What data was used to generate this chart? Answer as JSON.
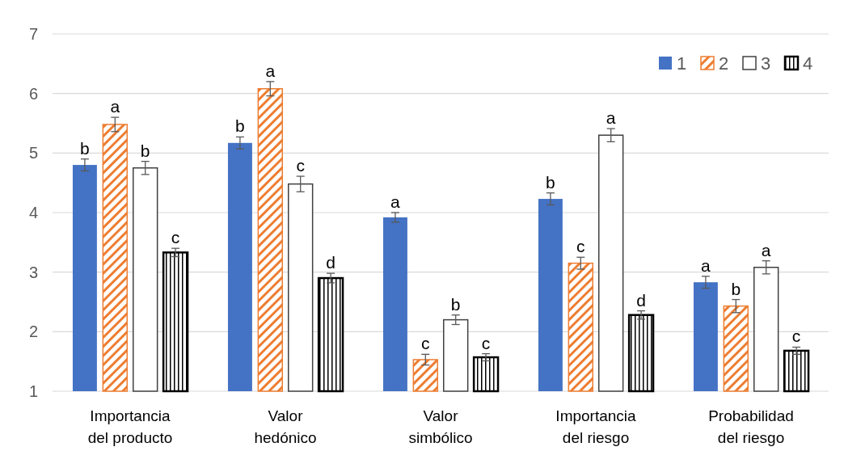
{
  "chart_data": {
    "type": "bar",
    "categories": [
      "Importancia del producto",
      "Valor hedónico",
      "Valor simbólico",
      "Importancia del riesgo",
      "Probabilidad del riesgo"
    ],
    "series": [
      {
        "name": "1",
        "color": "#4472c4",
        "values": [
          4.8,
          5.17,
          3.92,
          4.23,
          2.83
        ],
        "errors": [
          0.1,
          0.1,
          0.08,
          0.1,
          0.1
        ],
        "value_labels": [
          "b",
          "b",
          "a",
          "b",
          "a"
        ]
      },
      {
        "name": "2",
        "color": "#ed7d31",
        "values": [
          5.48,
          6.08,
          1.53,
          3.15,
          2.43
        ],
        "errors": [
          0.12,
          0.12,
          0.09,
          0.1,
          0.11
        ],
        "value_labels": [
          "a",
          "a",
          "c",
          "c",
          "b"
        ]
      },
      {
        "name": "3",
        "color": "#ffffff",
        "values": [
          4.75,
          4.48,
          2.2,
          5.3,
          3.08
        ],
        "errors": [
          0.11,
          0.13,
          0.08,
          0.11,
          0.11
        ],
        "value_labels": [
          "b",
          "c",
          "b",
          "a",
          "a"
        ]
      },
      {
        "name": "4",
        "color": "#000000",
        "values": [
          3.33,
          2.9,
          1.57,
          2.28,
          1.68
        ],
        "errors": [
          0.07,
          0.08,
          0.06,
          0.07,
          0.06
        ],
        "value_labels": [
          "c",
          "d",
          "c",
          "d",
          "c"
        ]
      }
    ],
    "ylim": [
      1,
      7
    ],
    "yticks": [
      1,
      2,
      3,
      4,
      5,
      6,
      7
    ],
    "grid": "y",
    "legend": "top right"
  }
}
